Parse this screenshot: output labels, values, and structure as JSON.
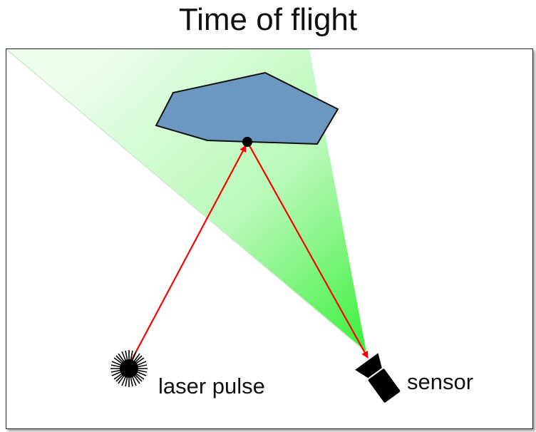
{
  "title": "Time of flight",
  "labels": {
    "laser": "laser pulse",
    "sensor": "sensor"
  },
  "colors": {
    "object_fill": "#6b97c0",
    "object_stroke": "#111111",
    "ray": "#ff0000",
    "field_of_view": "#33ee33",
    "frame_border": "#222222"
  },
  "icons": {
    "laser": "starburst-icon",
    "sensor": "camera-icon"
  }
}
